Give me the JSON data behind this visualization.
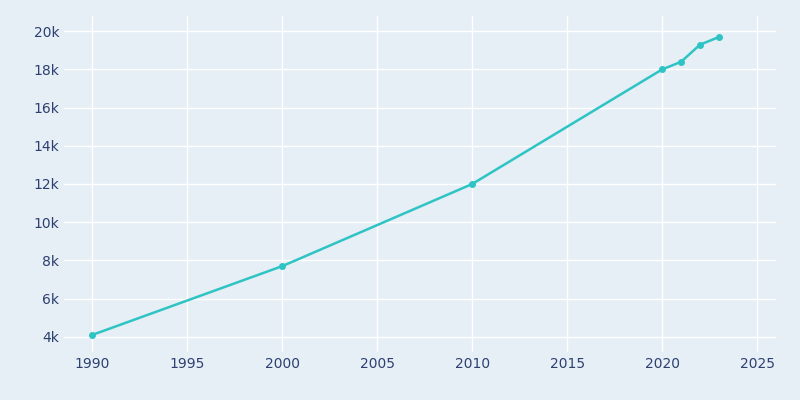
{
  "years": [
    1990,
    2000,
    2010,
    2020,
    2021,
    2022,
    2023
  ],
  "population": [
    4100,
    7700,
    12000,
    18000,
    18400,
    19300,
    19700
  ],
  "line_color": "#2EC4C4",
  "marker": "o",
  "marker_size": 4,
  "bg_color": "#E6EEF6",
  "plot_bg_color": "#E6EEF6",
  "grid_color": "#FFFFFF",
  "xlim": [
    1988.5,
    2026
  ],
  "ylim": [
    3200,
    20800
  ],
  "xticks": [
    1990,
    1995,
    2000,
    2005,
    2010,
    2015,
    2020,
    2025
  ],
  "yticks": [
    4000,
    6000,
    8000,
    10000,
    12000,
    14000,
    16000,
    18000,
    20000
  ],
  "ytick_labels": [
    "4k",
    "6k",
    "8k",
    "10k",
    "12k",
    "14k",
    "16k",
    "18k",
    "20k"
  ],
  "tick_color": "#2D4070",
  "linewidth": 1.8
}
